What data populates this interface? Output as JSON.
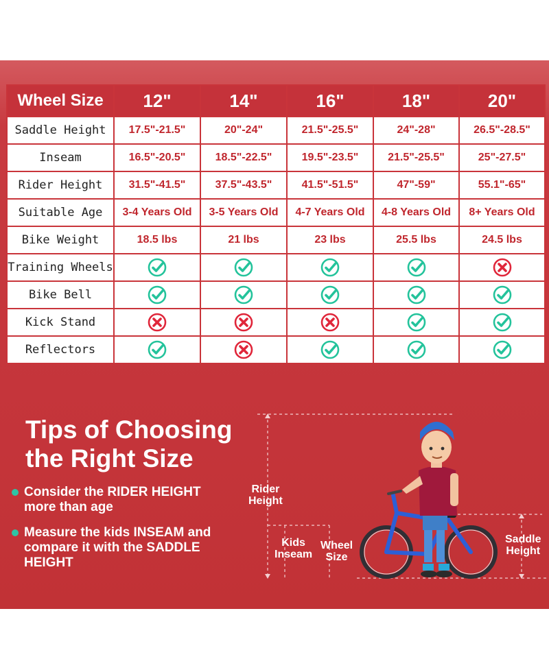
{
  "colors": {
    "brand_red": "#c5323a",
    "value_red": "#c0262d",
    "check_green": "#23c39b",
    "cross_red": "#e0263a"
  },
  "table": {
    "corner_label": "Wheel Size",
    "sizes": [
      "12\"",
      "14\"",
      "16\"",
      "18\"",
      "20\""
    ],
    "rows": [
      {
        "label": "Saddle Height",
        "kind": "text",
        "values": [
          "17.5\"-21.5\"",
          "20\"-24\"",
          "21.5\"-25.5\"",
          "24\"-28\"",
          "26.5\"-28.5\""
        ]
      },
      {
        "label": "Inseam",
        "kind": "text",
        "values": [
          "16.5\"-20.5\"",
          "18.5\"-22.5\"",
          "19.5\"-23.5\"",
          "21.5\"-25.5\"",
          "25\"-27.5\""
        ]
      },
      {
        "label": "Rider Height",
        "kind": "text",
        "values": [
          "31.5\"-41.5\"",
          "37.5\"-43.5\"",
          "41.5\"-51.5\"",
          "47\"-59\"",
          "55.1\"-65\""
        ]
      },
      {
        "label": "Suitable Age",
        "kind": "text",
        "values": [
          "3-4 Years Old",
          "3-5 Years Old",
          "4-7 Years Old",
          "4-8 Years Old",
          "8+ Years Old"
        ]
      },
      {
        "label": "Bike Weight",
        "kind": "text",
        "values": [
          "18.5 lbs",
          "21 lbs",
          "23 lbs",
          "25.5 lbs",
          "24.5 lbs"
        ]
      },
      {
        "label": "Training Wheels",
        "kind": "icon",
        "values": [
          "check-icon",
          "check-icon",
          "check-icon",
          "check-icon",
          "cross-icon"
        ]
      },
      {
        "label": "Bike Bell",
        "kind": "icon",
        "values": [
          "check-icon",
          "check-icon",
          "check-icon",
          "check-icon",
          "check-icon"
        ]
      },
      {
        "label": "Kick Stand",
        "kind": "icon",
        "values": [
          "cross-icon",
          "cross-icon",
          "cross-icon",
          "check-icon",
          "check-icon"
        ]
      },
      {
        "label": "Reflectors",
        "kind": "icon",
        "values": [
          "check-icon",
          "cross-icon",
          "check-icon",
          "check-icon",
          "check-icon"
        ]
      }
    ]
  },
  "tips": {
    "title_line1": "Tips of Choosing",
    "title_line2": "the Right Size",
    "items": [
      {
        "line1": "Consider the RIDER HEIGHT",
        "line2": "more than age"
      },
      {
        "line1": "Measure the kids INSEAM and",
        "line2": "compare it with the SADDLE",
        "line3": "HEIGHT"
      }
    ]
  },
  "illustration": {
    "rider_height": {
      "line1": "Rider",
      "line2": "Height"
    },
    "kids_inseam": {
      "line1": "Kids",
      "line2": "Inseam"
    },
    "wheel_size": {
      "line1": "Wheel",
      "line2": "Size"
    },
    "saddle_height": {
      "line1": "Saddle",
      "line2": "Height"
    }
  }
}
